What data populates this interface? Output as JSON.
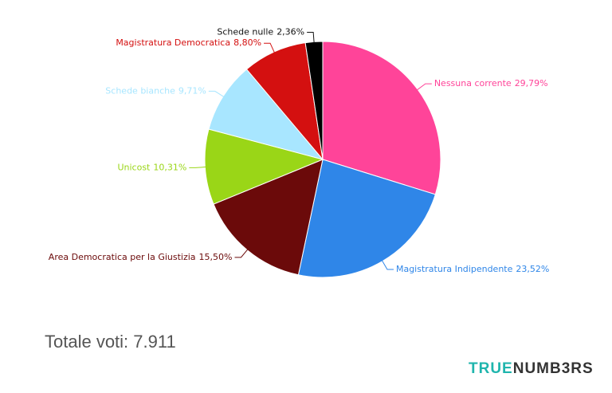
{
  "chart_data": {
    "type": "pie",
    "categories": [
      "Nessuna corrente",
      "Magistratura Indipendente",
      "Area Democratica per la Giustizia",
      "Unicost",
      "Schede bianche",
      "Magistratura Democratica",
      "Schede nulle"
    ],
    "values": [
      29.79,
      23.52,
      15.5,
      10.31,
      9.71,
      8.8,
      2.36
    ],
    "value_labels": [
      "29,79%",
      "23,52%",
      "15,50%",
      "10,31%",
      "9,71%",
      "8,80%",
      "2,36%"
    ],
    "colors": [
      "#ff4499",
      "#2f86e8",
      "#6b0a0a",
      "#9ad617",
      "#a8e6ff",
      "#d41010",
      "#000000"
    ]
  },
  "footer": {
    "total": "Totale voti: 7.911",
    "logo_left": "TRUE",
    "logo_right": "NUMB3RS"
  }
}
